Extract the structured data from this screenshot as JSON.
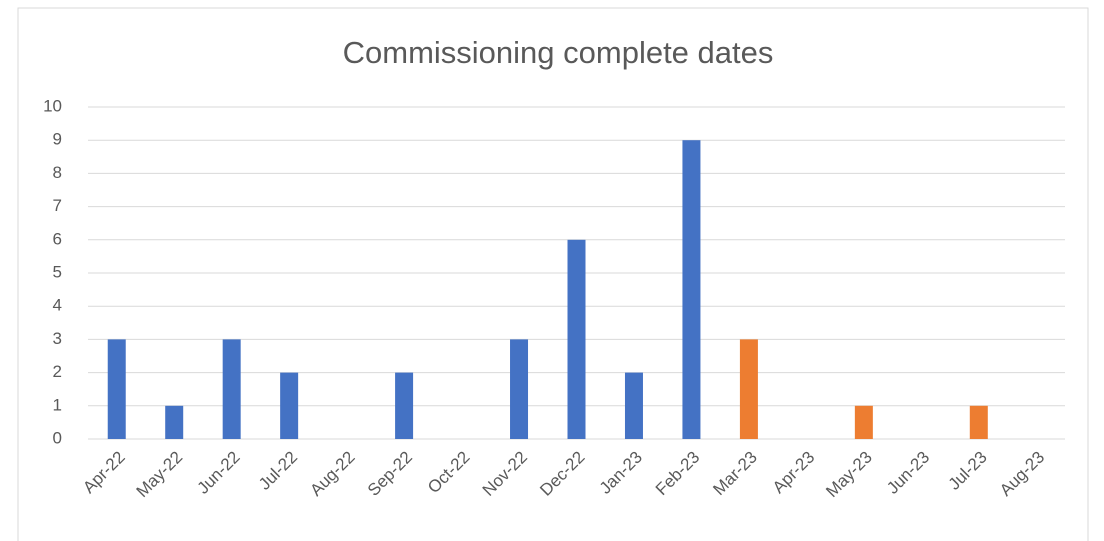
{
  "chart_data": {
    "type": "bar",
    "title": "Commissioning complete dates",
    "categories": [
      "Apr-22",
      "May-22",
      "Jun-22",
      "Jul-22",
      "Aug-22",
      "Sep-22",
      "Oct-22",
      "Nov-22",
      "Dec-22",
      "Jan-23",
      "Feb-23",
      "Mar-23",
      "Apr-23",
      "May-23",
      "Jun-23",
      "Jul-23",
      "Aug-23"
    ],
    "values": [
      3,
      1,
      3,
      2,
      0,
      2,
      0,
      3,
      6,
      2,
      9,
      3,
      0,
      1,
      0,
      1,
      0
    ],
    "colors": [
      "#4472c4",
      "#4472c4",
      "#4472c4",
      "#4472c4",
      "#4472c4",
      "#4472c4",
      "#4472c4",
      "#4472c4",
      "#4472c4",
      "#4472c4",
      "#4472c4",
      "#ed7d31",
      "#ed7d31",
      "#ed7d31",
      "#ed7d31",
      "#ed7d31",
      "#ed7d31"
    ],
    "ylim": [
      0,
      10
    ],
    "yticks": [
      0,
      1,
      2,
      3,
      4,
      5,
      6,
      7,
      8,
      9,
      10
    ],
    "grid": true
  }
}
